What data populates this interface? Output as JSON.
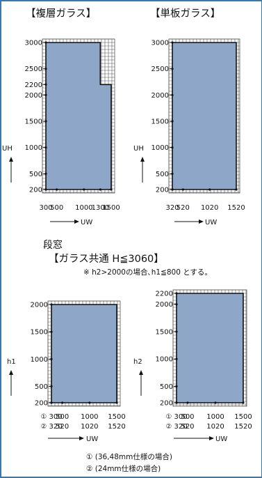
{
  "headers": {
    "double_glass": "【複層ガラス】",
    "single_glass": "【単板ガラス】"
  },
  "transom": {
    "title": "段窓",
    "subtitle": "【ガラス共通 H≦3060】",
    "note": "※ h2>2000の場合､h1≦800 とする。"
  },
  "legend": {
    "item1": "① (36,48mm仕様の場合)",
    "item2": "② (24mm仕様の場合)"
  },
  "colors": {
    "fill": "#8ea6c8",
    "grid": "#555555",
    "frame": "#3d77a8"
  },
  "chart_data": [
    {
      "type": "area",
      "name": "double-glass",
      "xlabel": "UW",
      "ylabel": "UH",
      "x_range": [
        300,
        1500
      ],
      "y_range": [
        200,
        3000
      ],
      "x_ticks": [
        {
          "v": 300,
          "t": "300"
        },
        {
          "v": 500,
          "t": "500"
        },
        {
          "v": 1000,
          "t": "1000"
        },
        {
          "v": 1300,
          "t": "1300"
        },
        {
          "v": 1500,
          "t": "1500"
        }
      ],
      "y_ticks": [
        {
          "v": 200,
          "t": "200"
        },
        {
          "v": 500,
          "t": "500"
        },
        {
          "v": 1000,
          "t": "1000"
        },
        {
          "v": 1500,
          "t": "1500"
        },
        {
          "v": 2000,
          "t": "2000"
        },
        {
          "v": 2200,
          "t": "2200"
        },
        {
          "v": 2500,
          "t": "2500"
        },
        {
          "v": 3000,
          "t": "3000"
        }
      ],
      "region": [
        [
          300,
          200
        ],
        [
          1500,
          200
        ],
        [
          1500,
          2200
        ],
        [
          1300,
          2200
        ],
        [
          1300,
          3000
        ],
        [
          300,
          3000
        ]
      ]
    },
    {
      "type": "area",
      "name": "single-glass",
      "xlabel": "UW",
      "ylabel": "UH",
      "x_range": [
        320,
        1520
      ],
      "y_range": [
        200,
        3000
      ],
      "x_ticks": [
        {
          "v": 320,
          "t": "320"
        },
        {
          "v": 520,
          "t": "520"
        },
        {
          "v": 1020,
          "t": "1020"
        },
        {
          "v": 1520,
          "t": "1520"
        }
      ],
      "y_ticks": [
        {
          "v": 200,
          "t": "200"
        },
        {
          "v": 500,
          "t": "500"
        },
        {
          "v": 1000,
          "t": "1000"
        },
        {
          "v": 1500,
          "t": "1500"
        },
        {
          "v": 2000,
          "t": "2000"
        },
        {
          "v": 2500,
          "t": "2500"
        },
        {
          "v": 3000,
          "t": "3000"
        }
      ],
      "region": [
        [
          320,
          200
        ],
        [
          1520,
          200
        ],
        [
          1520,
          3000
        ],
        [
          320,
          3000
        ]
      ]
    },
    {
      "type": "area",
      "name": "transom-h1",
      "xlabel": "UW",
      "ylabel": "h1",
      "x_range": [
        300,
        1500
      ],
      "y_range": [
        200,
        2000
      ],
      "x_ticks": [
        {
          "v": 300,
          "t": "① 300"
        },
        {
          "v": 500,
          "t": "500"
        },
        {
          "v": 1000,
          "t": "1000"
        },
        {
          "v": 1500,
          "t": "1500"
        }
      ],
      "x_ticks2": [
        {
          "v": 300,
          "t": "② 320"
        },
        {
          "v": 500,
          "t": "520"
        },
        {
          "v": 1000,
          "t": "1020"
        },
        {
          "v": 1500,
          "t": "1520"
        }
      ],
      "y_ticks": [
        {
          "v": 200,
          "t": "200"
        },
        {
          "v": 500,
          "t": "500"
        },
        {
          "v": 1000,
          "t": "1000"
        },
        {
          "v": 1500,
          "t": "1500"
        },
        {
          "v": 2000,
          "t": "2000"
        }
      ],
      "region": [
        [
          300,
          200
        ],
        [
          1500,
          200
        ],
        [
          1500,
          2000
        ],
        [
          300,
          2000
        ]
      ]
    },
    {
      "type": "area",
      "name": "transom-h2",
      "xlabel": "UW",
      "ylabel": "h2",
      "x_range": [
        300,
        1500
      ],
      "y_range": [
        200,
        2200
      ],
      "x_ticks": [
        {
          "v": 300,
          "t": "① 300"
        },
        {
          "v": 500,
          "t": "500"
        },
        {
          "v": 1000,
          "t": "1000"
        },
        {
          "v": 1500,
          "t": "1500"
        }
      ],
      "x_ticks2": [
        {
          "v": 300,
          "t": "② 320"
        },
        {
          "v": 500,
          "t": "520"
        },
        {
          "v": 1000,
          "t": "1020"
        },
        {
          "v": 1500,
          "t": "1520"
        }
      ],
      "y_ticks": [
        {
          "v": 200,
          "t": "200"
        },
        {
          "v": 500,
          "t": "500"
        },
        {
          "v": 1000,
          "t": "1000"
        },
        {
          "v": 1500,
          "t": "1500"
        },
        {
          "v": 2000,
          "t": "2000"
        },
        {
          "v": 2200,
          "t": "2200"
        }
      ],
      "region": [
        [
          300,
          200
        ],
        [
          1500,
          200
        ],
        [
          1500,
          2200
        ],
        [
          300,
          2200
        ]
      ]
    }
  ]
}
